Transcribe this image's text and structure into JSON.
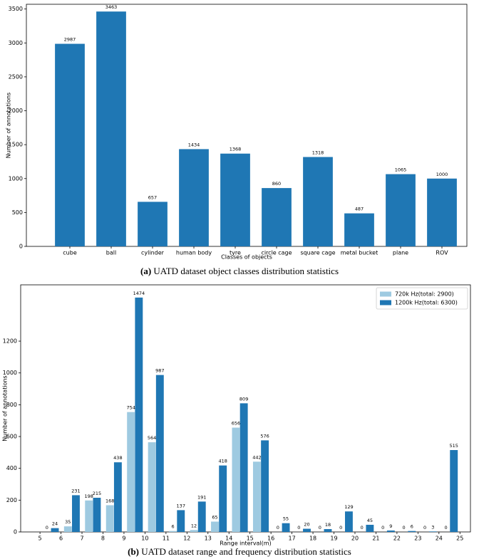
{
  "chart_data": [
    {
      "type": "bar",
      "xlabel": "Classes of objects",
      "ylabel": "Number of annotations",
      "caption_label": "(a)",
      "caption": "UATD dataset object classes distribution statistics",
      "categories": [
        "cube",
        "ball",
        "cylinder",
        "human body",
        "tyre",
        "circle cage",
        "square cage",
        "metal bucket",
        "plane",
        "ROV"
      ],
      "values": [
        2987,
        3463,
        657,
        1434,
        1368,
        860,
        1318,
        487,
        1065,
        1000
      ],
      "color": "#1f77b4",
      "ylim": [
        0,
        3570
      ],
      "yticks": [
        0,
        500,
        1000,
        1500,
        2000,
        2500,
        3000,
        3500
      ],
      "grid": false
    },
    {
      "type": "grouped_bar",
      "xlabel": "Range interval(m)",
      "ylabel": "Number of annotations",
      "caption_label": "(b)",
      "caption": "UATD dataset range and frequency distribution statistics",
      "x": [
        5,
        6,
        7,
        8,
        9,
        10,
        11,
        12,
        13,
        14,
        15,
        16,
        17,
        18,
        19,
        20,
        21,
        22,
        23,
        24
      ],
      "series": [
        {
          "name": "720k Hz(total: 2900)",
          "color": "#9ecae1",
          "values": [
            0,
            35,
            198,
            168,
            754,
            564,
            6,
            12,
            65,
            656,
            442,
            0,
            0,
            0,
            0,
            0,
            0,
            0,
            0,
            0
          ]
        },
        {
          "name": "1200k Hz(total: 6300)",
          "color": "#1f77b4",
          "values": [
            24,
            231,
            215,
            438,
            1474,
            987,
            137,
            191,
            418,
            809,
            576,
            55,
            20,
            18,
            129,
            45,
            9,
            6,
            3,
            515
          ]
        }
      ],
      "xlim": [
        4.08,
        25.5
      ],
      "xticks": [
        5,
        6,
        7,
        8,
        9,
        10,
        11,
        12,
        13,
        14,
        15,
        16,
        17,
        18,
        19,
        20,
        21,
        22,
        23,
        24,
        25
      ],
      "ylim": [
        0,
        1554
      ],
      "yticks": [
        0,
        200,
        400,
        600,
        800,
        1000,
        1200
      ],
      "grid": false,
      "legend": "upper right"
    }
  ]
}
